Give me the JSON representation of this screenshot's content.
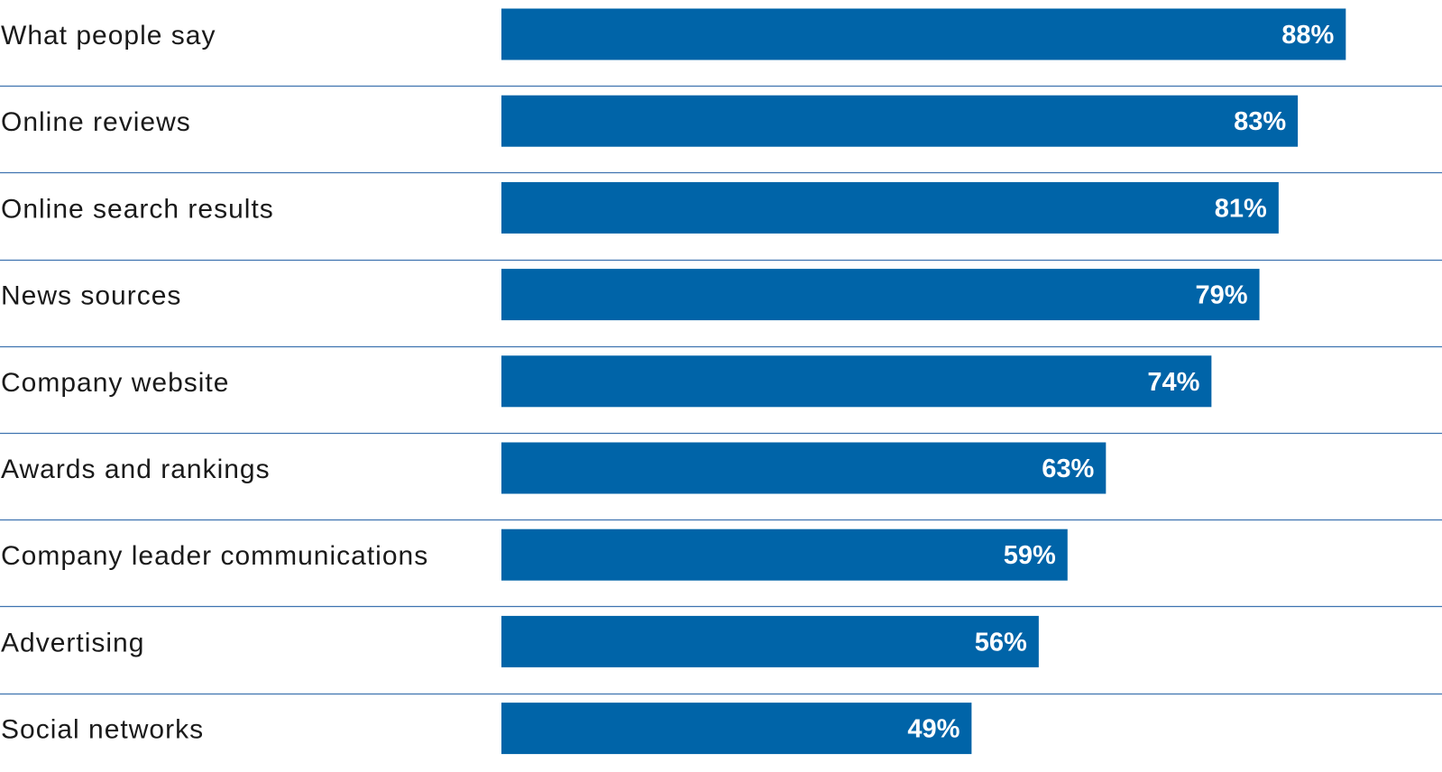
{
  "chart_data": {
    "type": "bar",
    "orientation": "horizontal",
    "categories": [
      "What people say",
      "Online reviews",
      "Online search results",
      "News sources",
      "Company website",
      "Awards and rankings",
      "Company leader communications",
      "Advertising",
      "Social networks"
    ],
    "values": [
      88,
      83,
      81,
      79,
      74,
      63,
      59,
      56,
      49
    ],
    "value_labels": [
      "88%",
      "83%",
      "81%",
      "79%",
      "74%",
      "63%",
      "59%",
      "56%",
      "49%"
    ],
    "unit": "%",
    "xlim": [
      0,
      100
    ],
    "grid": false,
    "legend": "none",
    "colors": {
      "bar": "#0064a8",
      "separator": "#3f73b0",
      "value_text": "#ffffff",
      "label_text": "#1a1a1a"
    }
  }
}
